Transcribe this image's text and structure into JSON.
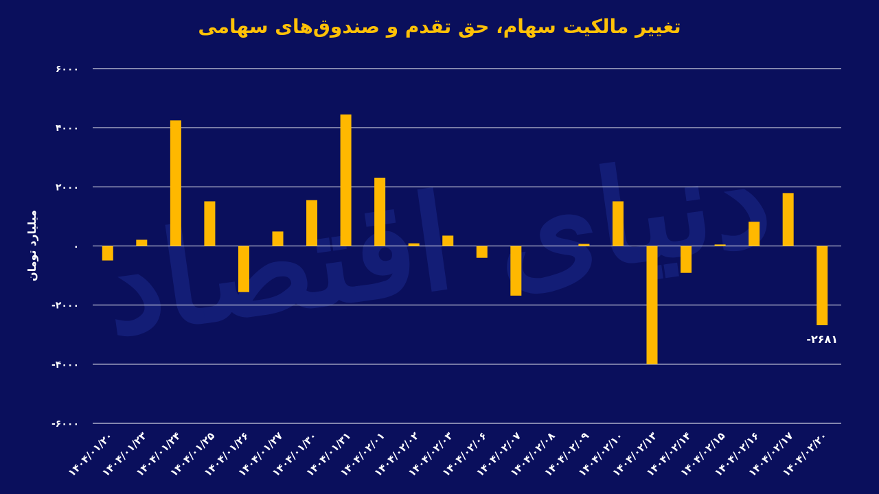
{
  "chart_data": {
    "type": "bar",
    "title": "تغییر مالکیت سهام، حق تقدم و صندوق‌های سهامی",
    "ylabel": "میلیارد تومان",
    "xlabel": "",
    "ylim": [
      -6000,
      6000
    ],
    "yticks": [
      6000,
      4000,
      2000,
      0,
      -2000,
      -4000,
      -6000
    ],
    "ytick_labels": [
      "۶۰۰۰",
      "۴۰۰۰",
      "۲۰۰۰",
      "۰",
      "-۲۰۰۰",
      "-۴۰۰۰",
      "-۶۰۰۰"
    ],
    "grid": true,
    "categories": [
      "۱۴۰۴/۰۱/۲۰",
      "۱۴۰۴/۰۱/۲۳",
      "۱۴۰۴/۰۱/۲۴",
      "۱۴۰۴/۰۱/۲۵",
      "۱۴۰۴/۰۱/۲۶",
      "۱۴۰۴/۰۱/۲۷",
      "۱۴۰۴/۰۱/۳۰",
      "۱۴۰۴/۰۱/۳۱",
      "۱۴۰۴/۰۲/۰۱",
      "۱۴۰۴/۰۲/۰۲",
      "۱۴۰۴/۰۲/۰۳",
      "۱۴۰۴/۰۲/۰۶",
      "۱۴۰۴/۰۲/۰۷",
      "۱۴۰۴/۰۲/۰۸",
      "۱۴۰۴/۰۲/۰۹",
      "۱۴۰۴/۰۲/۱۰",
      "۱۴۰۴/۰۲/۱۳",
      "۱۴۰۴/۰۲/۱۴",
      "۱۴۰۴/۰۲/۱۵",
      "۱۴۰۴/۰۲/۱۶",
      "۱۴۰۴/۰۲/۱۷",
      "۱۴۰۴/۰۲/۲۰"
    ],
    "values": [
      -490,
      210,
      4250,
      1510,
      -1560,
      490,
      1550,
      4450,
      2310,
      90,
      350,
      -400,
      -1680,
      0,
      70,
      1510,
      -4000,
      -910,
      50,
      820,
      1790,
      -2681
    ],
    "data_labels": [
      {
        "index": 21,
        "text": "-۲۶۸۱"
      }
    ],
    "bar_color": "#ffb800",
    "background_color": "#0a0f5c",
    "title_color": "#ffc107"
  },
  "watermark": "دنیای اقتصاد"
}
